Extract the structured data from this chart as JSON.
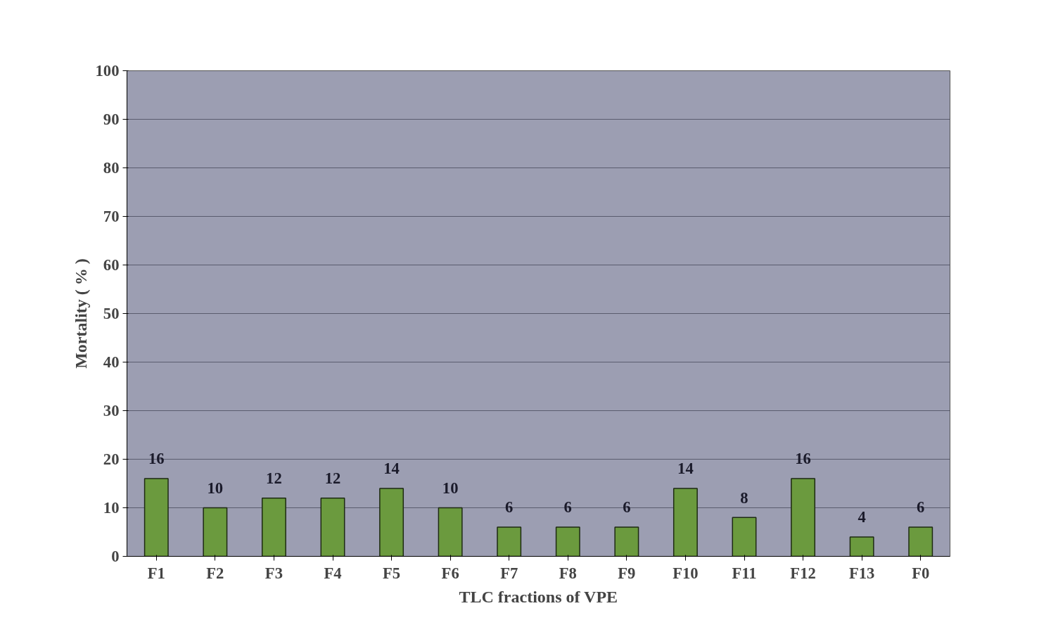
{
  "chart_data": {
    "type": "bar",
    "xlabel": "TLC fractions of VPE",
    "ylabel": "Mortality ( % )",
    "categories": [
      "F1",
      "F2",
      "F3",
      "F4",
      "F5",
      "F6",
      "F7",
      "F8",
      "F9",
      "F10",
      "F11",
      "F12",
      "F13",
      "F0"
    ],
    "values": [
      16,
      10,
      12,
      12,
      14,
      10,
      6,
      6,
      6,
      14,
      8,
      16,
      4,
      6
    ],
    "color": "#6b9a3e",
    "ylim": [
      0,
      100
    ],
    "yticks": [
      0,
      10,
      20,
      30,
      40,
      50,
      60,
      70,
      80,
      90,
      100
    ],
    "grid": "y",
    "data_labels": true
  }
}
